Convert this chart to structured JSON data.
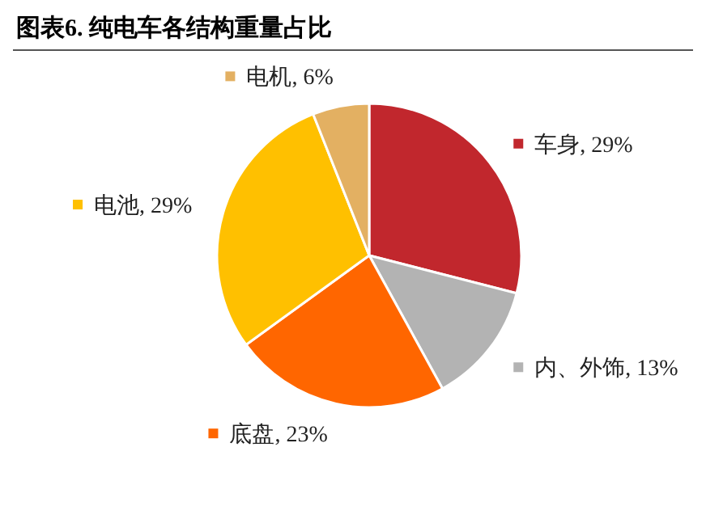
{
  "chart_data": {
    "type": "pie",
    "title": "图表6.  纯电车各结构重量占比",
    "categories": [
      "车身",
      "内、外饰",
      "底盘",
      "电池",
      "电机"
    ],
    "values": [
      29,
      13,
      23,
      29,
      6
    ],
    "value_labels": [
      "29%",
      "13%",
      "23%",
      "29%",
      "6%"
    ],
    "legend": "top right",
    "colors": [
      "#c1272d",
      "#b3b3b3",
      "#ff6600",
      "#ffc000",
      "#e3b062"
    ]
  }
}
